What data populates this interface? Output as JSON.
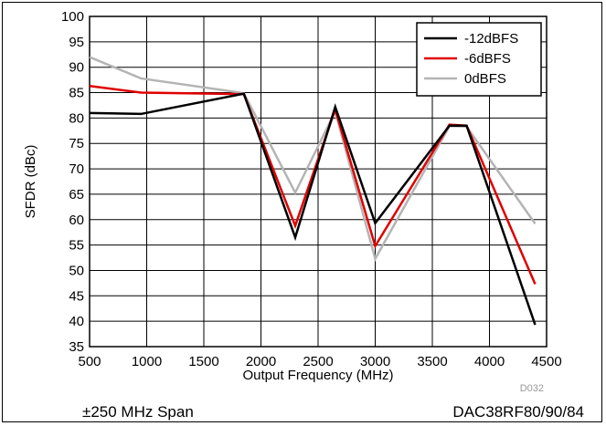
{
  "chart_data": {
    "type": "line",
    "xlabel": "Output Frequency (MHz)",
    "ylabel": "SFDR (dBc)",
    "xlim": [
      500,
      4500
    ],
    "ylim": [
      35,
      100
    ],
    "xticks": [
      500,
      1000,
      1500,
      2000,
      2500,
      3000,
      3500,
      4000,
      4500
    ],
    "yticks": [
      35,
      40,
      45,
      50,
      55,
      60,
      65,
      70,
      75,
      80,
      85,
      90,
      95,
      100
    ],
    "grid": true,
    "legend_position": "top-right",
    "series": [
      {
        "name": "-12dBFS",
        "color": "#000000",
        "x": [
          500,
          950,
          1850,
          2300,
          2650,
          3000,
          3650,
          3800,
          4400
        ],
        "y": [
          81,
          80.8,
          84.8,
          56.5,
          82.2,
          59.3,
          78.5,
          78.5,
          39.3
        ]
      },
      {
        "name": "-6dBFS",
        "color": "#e00000",
        "x": [
          500,
          950,
          1850,
          2300,
          2650,
          3000,
          3650,
          3800,
          4400
        ],
        "y": [
          86.3,
          85,
          84.7,
          58.8,
          81.7,
          54.8,
          78.7,
          78.5,
          47.3
        ]
      },
      {
        "name": "0dBFS",
        "color": "#b4b4b4",
        "x": [
          500,
          950,
          1850,
          2300,
          2650,
          3000,
          3650,
          3800,
          4400
        ],
        "y": [
          92,
          87.8,
          84.9,
          65.3,
          81.3,
          52.3,
          78.4,
          78.3,
          59.2
        ]
      }
    ]
  },
  "figure_code": "D032",
  "footer": {
    "left": "±250 MHz Span",
    "right": "DAC38RF80/90/84"
  }
}
